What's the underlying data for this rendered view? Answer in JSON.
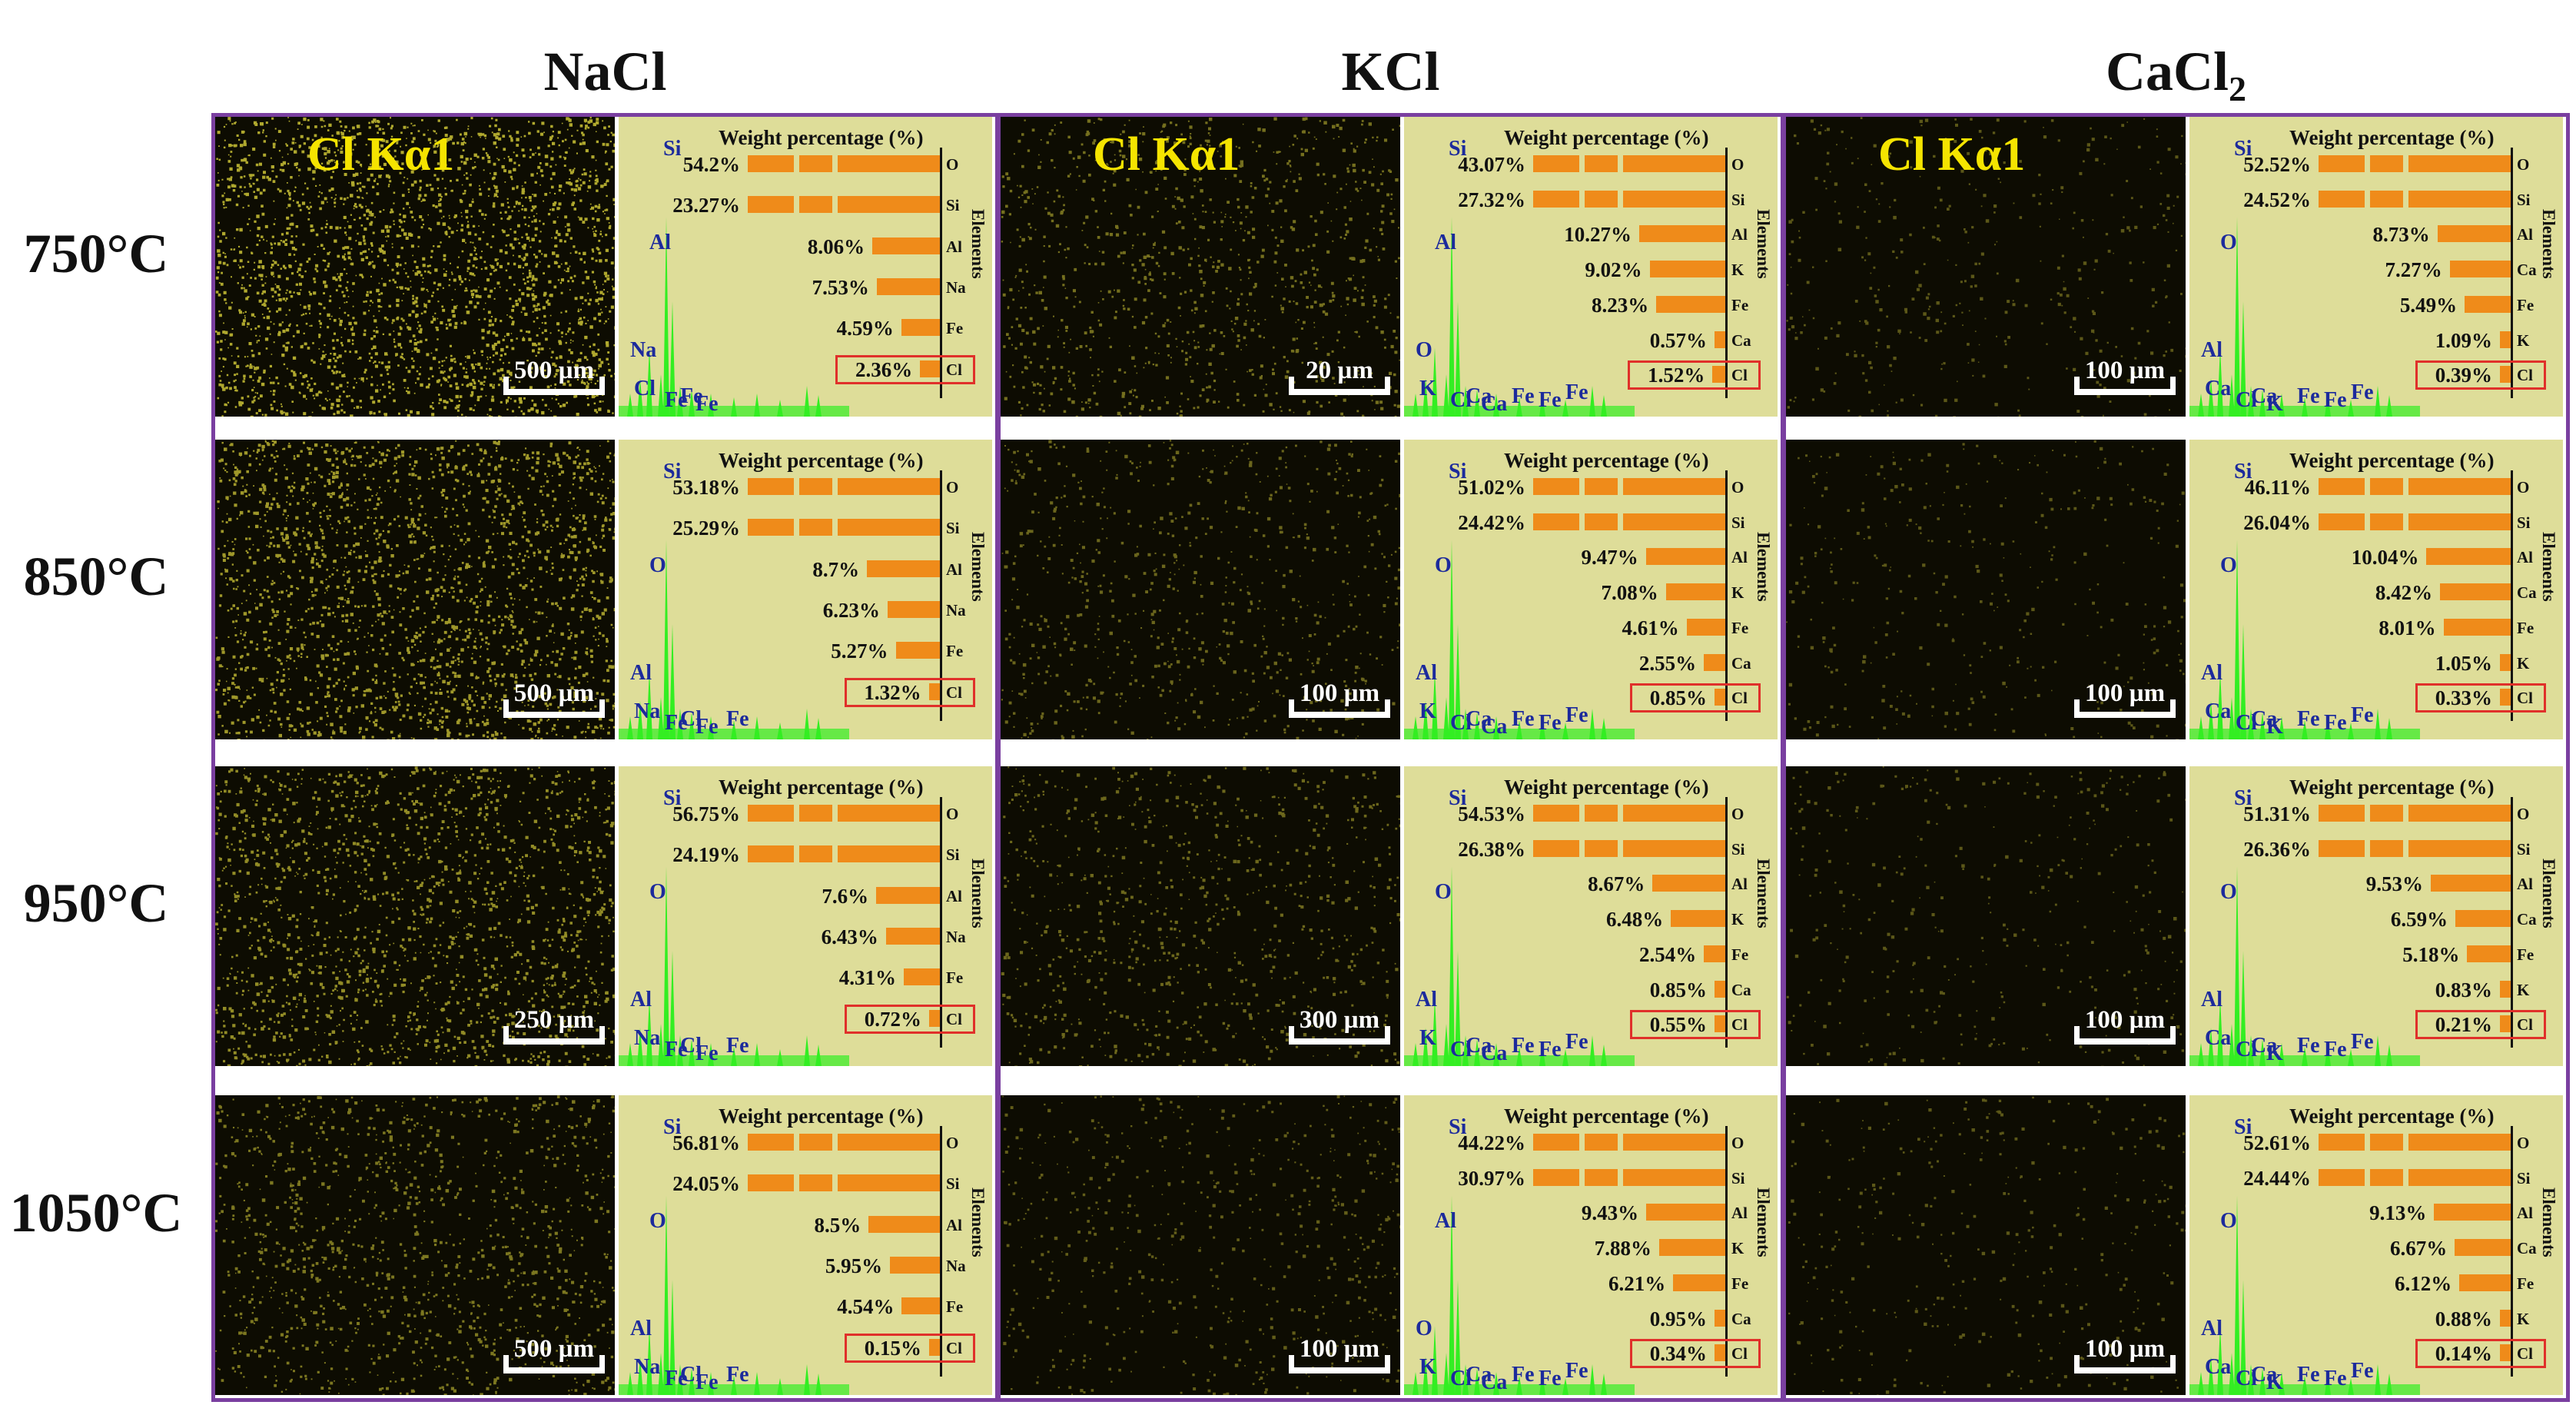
{
  "column_headers": [
    "NaCl",
    "KCl",
    "CaCl"
  ],
  "column_header_subscripts": [
    "",
    "",
    "2"
  ],
  "row_headers": [
    "750°C",
    "850°C",
    "950°C",
    "1050°C"
  ],
  "map_label": "Cl Kα1",
  "chart_title": "Weight percentage (%)",
  "elements_axis_label": "Elements",
  "colors": {
    "frame": "#7a3fa0",
    "bar": "#ef8b1a",
    "eds_bg": "#dedd99",
    "spectrum": "#33ee22",
    "peak_label": "#1c2a9c",
    "highlight_box": "#e0302a",
    "map_dots": "#d8cf3a"
  },
  "panels": [
    [
      {
        "scale": "500 µm",
        "density": 0.9,
        "peaks": [
          "Si",
          "Al",
          "Na",
          "Cl",
          "Fe",
          "Fe",
          "Fe"
        ],
        "elements": [
          "O",
          "Si",
          "Al",
          "Na",
          "Fe",
          "Cl"
        ],
        "values": [
          "54.2%",
          "23.27%",
          "8.06%",
          "7.53%",
          "4.59%",
          "2.36%"
        ],
        "fractions": [
          54.2,
          23.27,
          8.06,
          7.53,
          4.59,
          2.36
        ]
      },
      {
        "scale": "20 µm",
        "density": 0.32,
        "peaks": [
          "Si",
          "Al",
          "O",
          "K",
          "Ca",
          "Cl",
          "Ca",
          "Fe",
          "Fe",
          "Fe"
        ],
        "elements": [
          "O",
          "Si",
          "Al",
          "K",
          "Fe",
          "Ca",
          "Cl"
        ],
        "values": [
          "43.07%",
          "27.32%",
          "10.27%",
          "9.02%",
          "8.23%",
          "0.57%",
          "1.52%"
        ],
        "fractions": [
          43.07,
          27.32,
          10.27,
          9.02,
          8.23,
          0.57,
          1.52
        ]
      },
      {
        "scale": "100 µm",
        "density": 0.08,
        "peaks": [
          "Si",
          "O",
          "Al",
          "Ca",
          "Ca",
          "Cl",
          "K",
          "Fe",
          "Fe",
          "Fe"
        ],
        "elements": [
          "O",
          "Si",
          "Al",
          "Ca",
          "Fe",
          "K",
          "Cl"
        ],
        "values": [
          "52.52%",
          "24.52%",
          "8.73%",
          "7.27%",
          "5.49%",
          "1.09%",
          "0.39%"
        ],
        "fractions": [
          52.52,
          24.52,
          8.73,
          7.27,
          5.49,
          1.09,
          0.39
        ]
      }
    ],
    [
      {
        "scale": "500 µm",
        "density": 0.75,
        "peaks": [
          "Si",
          "O",
          "Al",
          "Na",
          "Cl",
          "Fe",
          "Fe",
          "Fe"
        ],
        "elements": [
          "O",
          "Si",
          "Al",
          "Na",
          "Fe",
          "Cl"
        ],
        "values": [
          "53.18%",
          "25.29%",
          "8.7%",
          "6.23%",
          "5.27%",
          "1.32%"
        ],
        "fractions": [
          53.18,
          25.29,
          8.7,
          6.23,
          5.27,
          1.32
        ]
      },
      {
        "scale": "100 µm",
        "density": 0.22,
        "peaks": [
          "Si",
          "O",
          "Al",
          "K",
          "Ca",
          "Cl",
          "Ca",
          "Fe",
          "Fe",
          "Fe"
        ],
        "elements": [
          "O",
          "Si",
          "Al",
          "K",
          "Fe",
          "Ca",
          "Cl"
        ],
        "values": [
          "51.02%",
          "24.42%",
          "9.47%",
          "7.08%",
          "4.61%",
          "2.55%",
          "0.85%"
        ],
        "fractions": [
          51.02,
          24.42,
          9.47,
          7.08,
          4.61,
          2.55,
          0.85
        ]
      },
      {
        "scale": "100 µm",
        "density": 0.07,
        "peaks": [
          "Si",
          "O",
          "Al",
          "Ca",
          "Ca",
          "Cl",
          "K",
          "Fe",
          "Fe",
          "Fe"
        ],
        "elements": [
          "O",
          "Si",
          "Al",
          "Ca",
          "Fe",
          "K",
          "Cl"
        ],
        "values": [
          "46.11%",
          "26.04%",
          "10.04%",
          "8.42%",
          "8.01%",
          "1.05%",
          "0.33%"
        ],
        "fractions": [
          46.11,
          26.04,
          10.04,
          8.42,
          8.01,
          1.05,
          0.33
        ]
      }
    ],
    [
      {
        "scale": "250 µm",
        "density": 0.62,
        "peaks": [
          "Si",
          "O",
          "Al",
          "Na",
          "Cl",
          "Fe",
          "Fe",
          "Fe"
        ],
        "elements": [
          "O",
          "Si",
          "Al",
          "Na",
          "Fe",
          "Cl"
        ],
        "values": [
          "56.75%",
          "24.19%",
          "7.6%",
          "6.43%",
          "4.31%",
          "0.72%"
        ],
        "fractions": [
          56.75,
          24.19,
          7.6,
          6.43,
          4.31,
          0.72
        ]
      },
      {
        "scale": "300 µm",
        "density": 0.25,
        "peaks": [
          "Si",
          "O",
          "Al",
          "K",
          "Ca",
          "Cl",
          "Ca",
          "Fe",
          "Fe",
          "Fe"
        ],
        "elements": [
          "O",
          "Si",
          "Al",
          "K",
          "Fe",
          "Ca",
          "Cl"
        ],
        "values": [
          "54.53%",
          "26.38%",
          "8.67%",
          "6.48%",
          "2.54%",
          "0.85%",
          "0.55%"
        ],
        "fractions": [
          54.53,
          26.38,
          8.67,
          6.48,
          2.54,
          0.85,
          0.55
        ]
      },
      {
        "scale": "100 µm",
        "density": 0.07,
        "peaks": [
          "Si",
          "O",
          "Al",
          "Ca",
          "Ca",
          "Cl",
          "K",
          "Fe",
          "Fe",
          "Fe"
        ],
        "elements": [
          "O",
          "Si",
          "Al",
          "Ca",
          "Fe",
          "K",
          "Cl"
        ],
        "values": [
          "51.31%",
          "26.36%",
          "9.53%",
          "6.59%",
          "5.18%",
          "0.83%",
          "0.21%"
        ],
        "fractions": [
          51.31,
          26.36,
          9.53,
          6.59,
          5.18,
          0.83,
          0.21
        ]
      }
    ],
    [
      {
        "scale": "500 µm",
        "density": 0.4,
        "peaks": [
          "Si",
          "O",
          "Al",
          "Na",
          "Cl",
          "Fe",
          "Fe",
          "Fe"
        ],
        "elements": [
          "O",
          "Si",
          "Al",
          "Na",
          "Fe",
          "Cl"
        ],
        "values": [
          "56.81%",
          "24.05%",
          "8.5%",
          "5.95%",
          "4.54%",
          "0.15%"
        ],
        "fractions": [
          56.81,
          24.05,
          8.5,
          5.95,
          4.54,
          0.15
        ]
      },
      {
        "scale": "100 µm",
        "density": 0.15,
        "peaks": [
          "Si",
          "Al",
          "O",
          "K",
          "Ca",
          "Cl",
          "Ca",
          "Fe",
          "Fe",
          "Fe"
        ],
        "elements": [
          "O",
          "Si",
          "Al",
          "K",
          "Fe",
          "Ca",
          "Cl"
        ],
        "values": [
          "44.22%",
          "30.97%",
          "9.43%",
          "7.88%",
          "6.21%",
          "0.95%",
          "0.34%"
        ],
        "fractions": [
          44.22,
          30.97,
          9.43,
          7.88,
          6.21,
          0.95,
          0.34
        ]
      },
      {
        "scale": "100 µm",
        "density": 0.07,
        "peaks": [
          "Si",
          "O",
          "Al",
          "Ca",
          "Ca",
          "Cl",
          "K",
          "Fe",
          "Fe",
          "Fe"
        ],
        "elements": [
          "O",
          "Si",
          "Al",
          "Ca",
          "Fe",
          "K",
          "Cl"
        ],
        "values": [
          "52.61%",
          "24.44%",
          "9.13%",
          "6.67%",
          "6.12%",
          "0.88%",
          "0.14%"
        ],
        "fractions": [
          52.61,
          24.44,
          9.13,
          6.67,
          6.12,
          0.88,
          0.14
        ]
      }
    ]
  ]
}
